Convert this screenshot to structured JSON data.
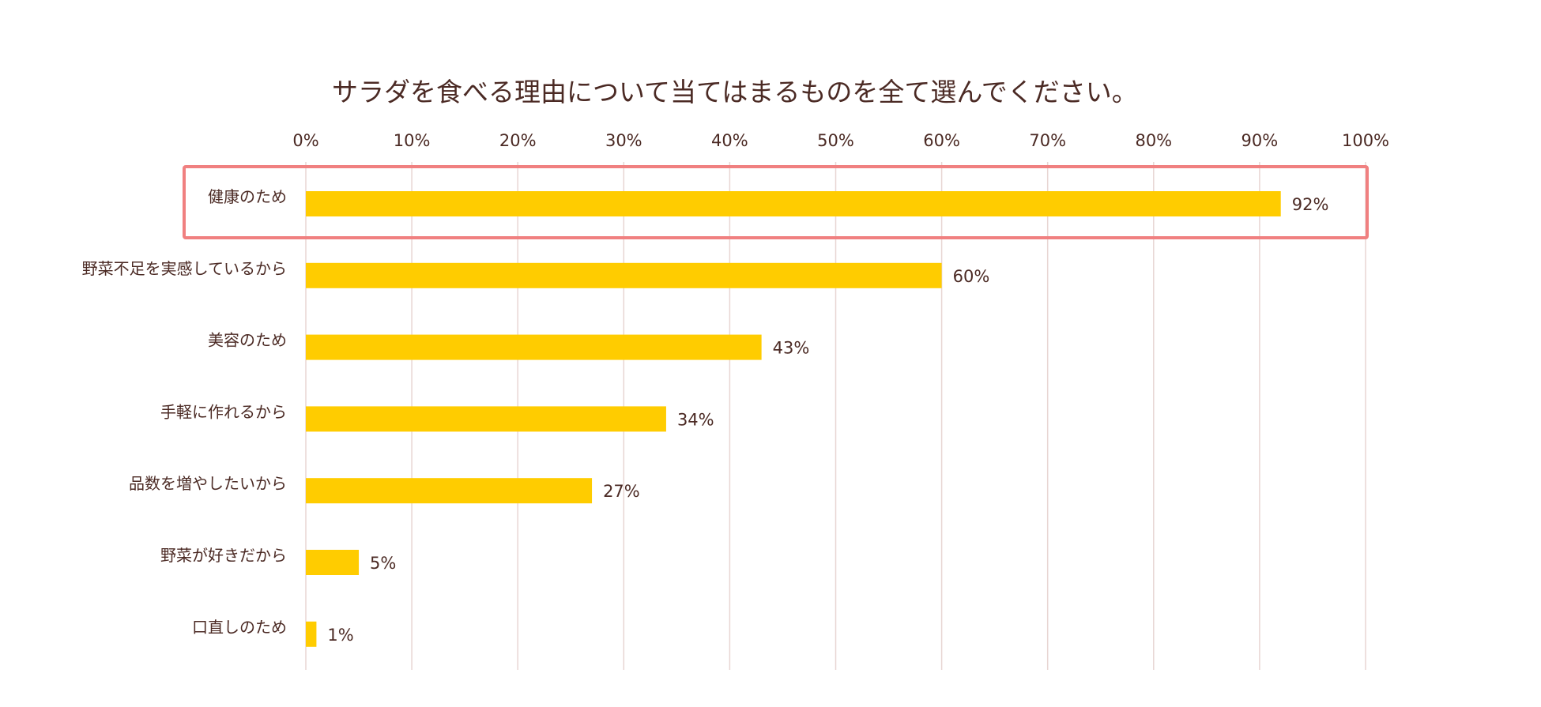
{
  "chart_data": {
    "type": "bar",
    "orientation": "horizontal",
    "title": "サラダを食べる理由について当てはまるものを全て選んでください。",
    "categories": [
      "健康のため",
      "野菜不足を実感しているから",
      "美容のため",
      "手軽に作れるから",
      "品数を増やしたいから",
      "野菜が好きだから",
      "口直しのため"
    ],
    "values": [
      92,
      60,
      43,
      34,
      27,
      5,
      1
    ],
    "value_labels": [
      "92%",
      "60%",
      "43%",
      "34%",
      "27%",
      "5%",
      "1%"
    ],
    "xlim": [
      0,
      100
    ],
    "x_ticks": [
      0,
      10,
      20,
      30,
      40,
      50,
      60,
      70,
      80,
      90,
      100
    ],
    "x_tick_labels": [
      "0%",
      "10%",
      "20%",
      "30%",
      "40%",
      "50%",
      "60%",
      "70%",
      "80%",
      "90%",
      "100%"
    ],
    "x_axis_position": "top",
    "grid": true,
    "legend": "none",
    "highlighted_category": "健康のため",
    "colors": {
      "bar": "#FFCC00",
      "grid": "#E8D6D3",
      "highlight_border": "#F08080",
      "text": "#4B2A24"
    }
  }
}
